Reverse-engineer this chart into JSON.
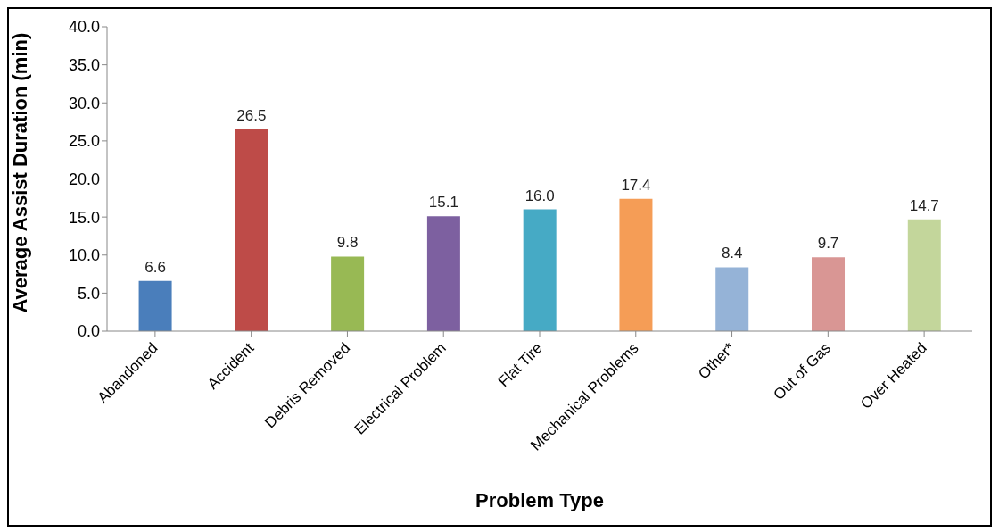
{
  "chart_data": {
    "type": "bar",
    "xlabel": "Problem Type",
    "ylabel": "Average Assist Duration (min)",
    "categories": [
      "Abandoned",
      "Accident",
      "Debris Removed",
      "Electrical Problem",
      "Flat Tire",
      "Mechanical Problems",
      "Other*",
      "Out of Gas",
      "Over Heated"
    ],
    "values": [
      6.6,
      26.5,
      9.8,
      15.1,
      16.0,
      17.4,
      8.4,
      9.7,
      14.7
    ],
    "value_labels": [
      "6.6",
      "26.5",
      "9.8",
      "15.1",
      "16.0",
      "17.4",
      "8.4",
      "9.7",
      "14.7"
    ],
    "colors": [
      "#4a7ebb",
      "#be4b48",
      "#98b954",
      "#7d60a0",
      "#46aac5",
      "#f59d56",
      "#95b3d7",
      "#d99694",
      "#c3d69b"
    ],
    "ylim": [
      0,
      40
    ],
    "yticks": [
      {
        "value": 0,
        "label": "0.0"
      },
      {
        "value": 5,
        "label": "5.0"
      },
      {
        "value": 10,
        "label": "10.0"
      },
      {
        "value": 15,
        "label": "15.0"
      },
      {
        "value": 20,
        "label": "20.0"
      },
      {
        "value": 25,
        "label": "25.0"
      },
      {
        "value": 30,
        "label": "30.0"
      },
      {
        "value": 35,
        "label": "35.0"
      },
      {
        "value": 40,
        "label": "40.0"
      }
    ],
    "grid": false,
    "legend": false
  }
}
